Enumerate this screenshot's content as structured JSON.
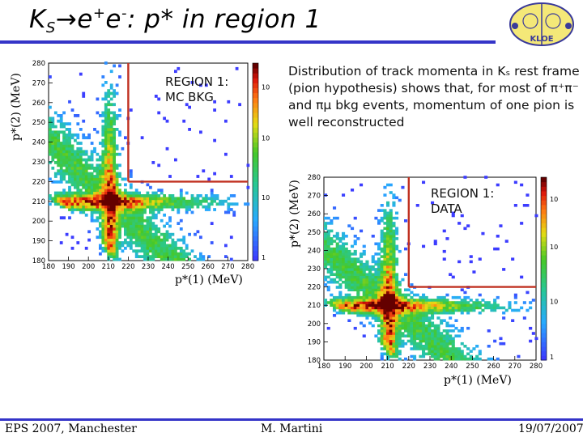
{
  "slide": {
    "title_main": "K",
    "title_sub": "S",
    "title_arrow": "→e",
    "title_sup1": "+",
    "title_e2": "e",
    "title_sup2": "-",
    "title_rest": ": p* in region 1",
    "description": "Distribution of track momenta in Kₛ rest frame (pion hypothesis) shows that, for most of π⁺π⁻ and πμ bkg events, momentum of one pion is well reconstructed",
    "footer_left": "EPS 2007, Manchester",
    "footer_center": "M. Martini",
    "footer_right": "19/07/2007",
    "logo_text": "KLOE"
  },
  "panels": [
    {
      "region_line1": "REGION 1:",
      "region_line2": "MC BKG",
      "xlabel": "p*(1) (MeV)",
      "ylabel": "p*(2) (MeV)",
      "xticks": [
        "180",
        "190",
        "200",
        "210",
        "220",
        "230",
        "240",
        "250",
        "260",
        "270",
        "280"
      ],
      "yticks": [
        "180",
        "190",
        "200",
        "210",
        "220",
        "230",
        "240",
        "250",
        "260",
        "270",
        "280"
      ],
      "zticks": [
        "10",
        "10",
        "10",
        "1"
      ]
    },
    {
      "region_line1": "REGION 1:",
      "region_line2": "DATA",
      "xlabel": "p*(1) (MeV)",
      "ylabel": "p*(2) (MeV)",
      "xticks": [
        "180",
        "190",
        "200",
        "210",
        "220",
        "230",
        "240",
        "250",
        "260",
        "270",
        "280"
      ],
      "yticks": [
        "180",
        "190",
        "200",
        "210",
        "220",
        "230",
        "240",
        "250",
        "260",
        "270",
        "280"
      ],
      "zticks": [
        "10",
        "10",
        "10",
        "1"
      ]
    }
  ],
  "chart_data": [
    {
      "type": "heatmap",
      "title": "",
      "xlabel": "p*(1) (MeV)",
      "ylabel": "p*(2) (MeV)",
      "xlim": [
        180,
        280
      ],
      "ylim": [
        180,
        280
      ],
      "z_scale": "log",
      "region_boundary": {
        "x_min": 220,
        "y_min": 220
      },
      "peak": [
        210,
        210
      ],
      "colors": {
        "low": "#4040ff",
        "mid": "#30c030",
        "high": "#b00000",
        "boundary": "#c03020"
      }
    },
    {
      "type": "heatmap",
      "title": "",
      "xlabel": "p*(1) (MeV)",
      "ylabel": "p*(2) (MeV)",
      "xlim": [
        180,
        280
      ],
      "ylim": [
        180,
        280
      ],
      "z_scale": "log",
      "region_boundary": {
        "x_min": 220,
        "y_min": 220
      },
      "peak": [
        210,
        210
      ],
      "colors": {
        "low": "#4040ff",
        "mid": "#30c030",
        "high": "#b00000",
        "boundary": "#c03020"
      }
    }
  ]
}
